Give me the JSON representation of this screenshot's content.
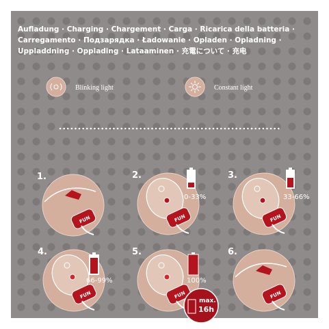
{
  "header": {
    "title": [
      "Aufladung · Charging · Chargement · Carga · Ricarica della batteria ·",
      "Carregamento · Подзарядка · Ładowanie · Opladen · Opladning ·",
      "Uppladdning · Opplading · Lataaminen · 充電について · 充电"
    ]
  },
  "legend": [
    {
      "label": "Blinking light"
    },
    {
      "label": "Constant light"
    }
  ],
  "logo": "FUN",
  "steps": [
    {
      "number": "1."
    },
    {
      "number": "2.",
      "battery": "0-33%"
    },
    {
      "number": "3.",
      "battery": "33-66%"
    },
    {
      "number": "4.",
      "battery": "66-99%"
    },
    {
      "number": "5.",
      "battery": "100%"
    },
    {
      "number": "6."
    }
  ],
  "badge": {
    "top": "max.",
    "bottom": "16h"
  }
}
